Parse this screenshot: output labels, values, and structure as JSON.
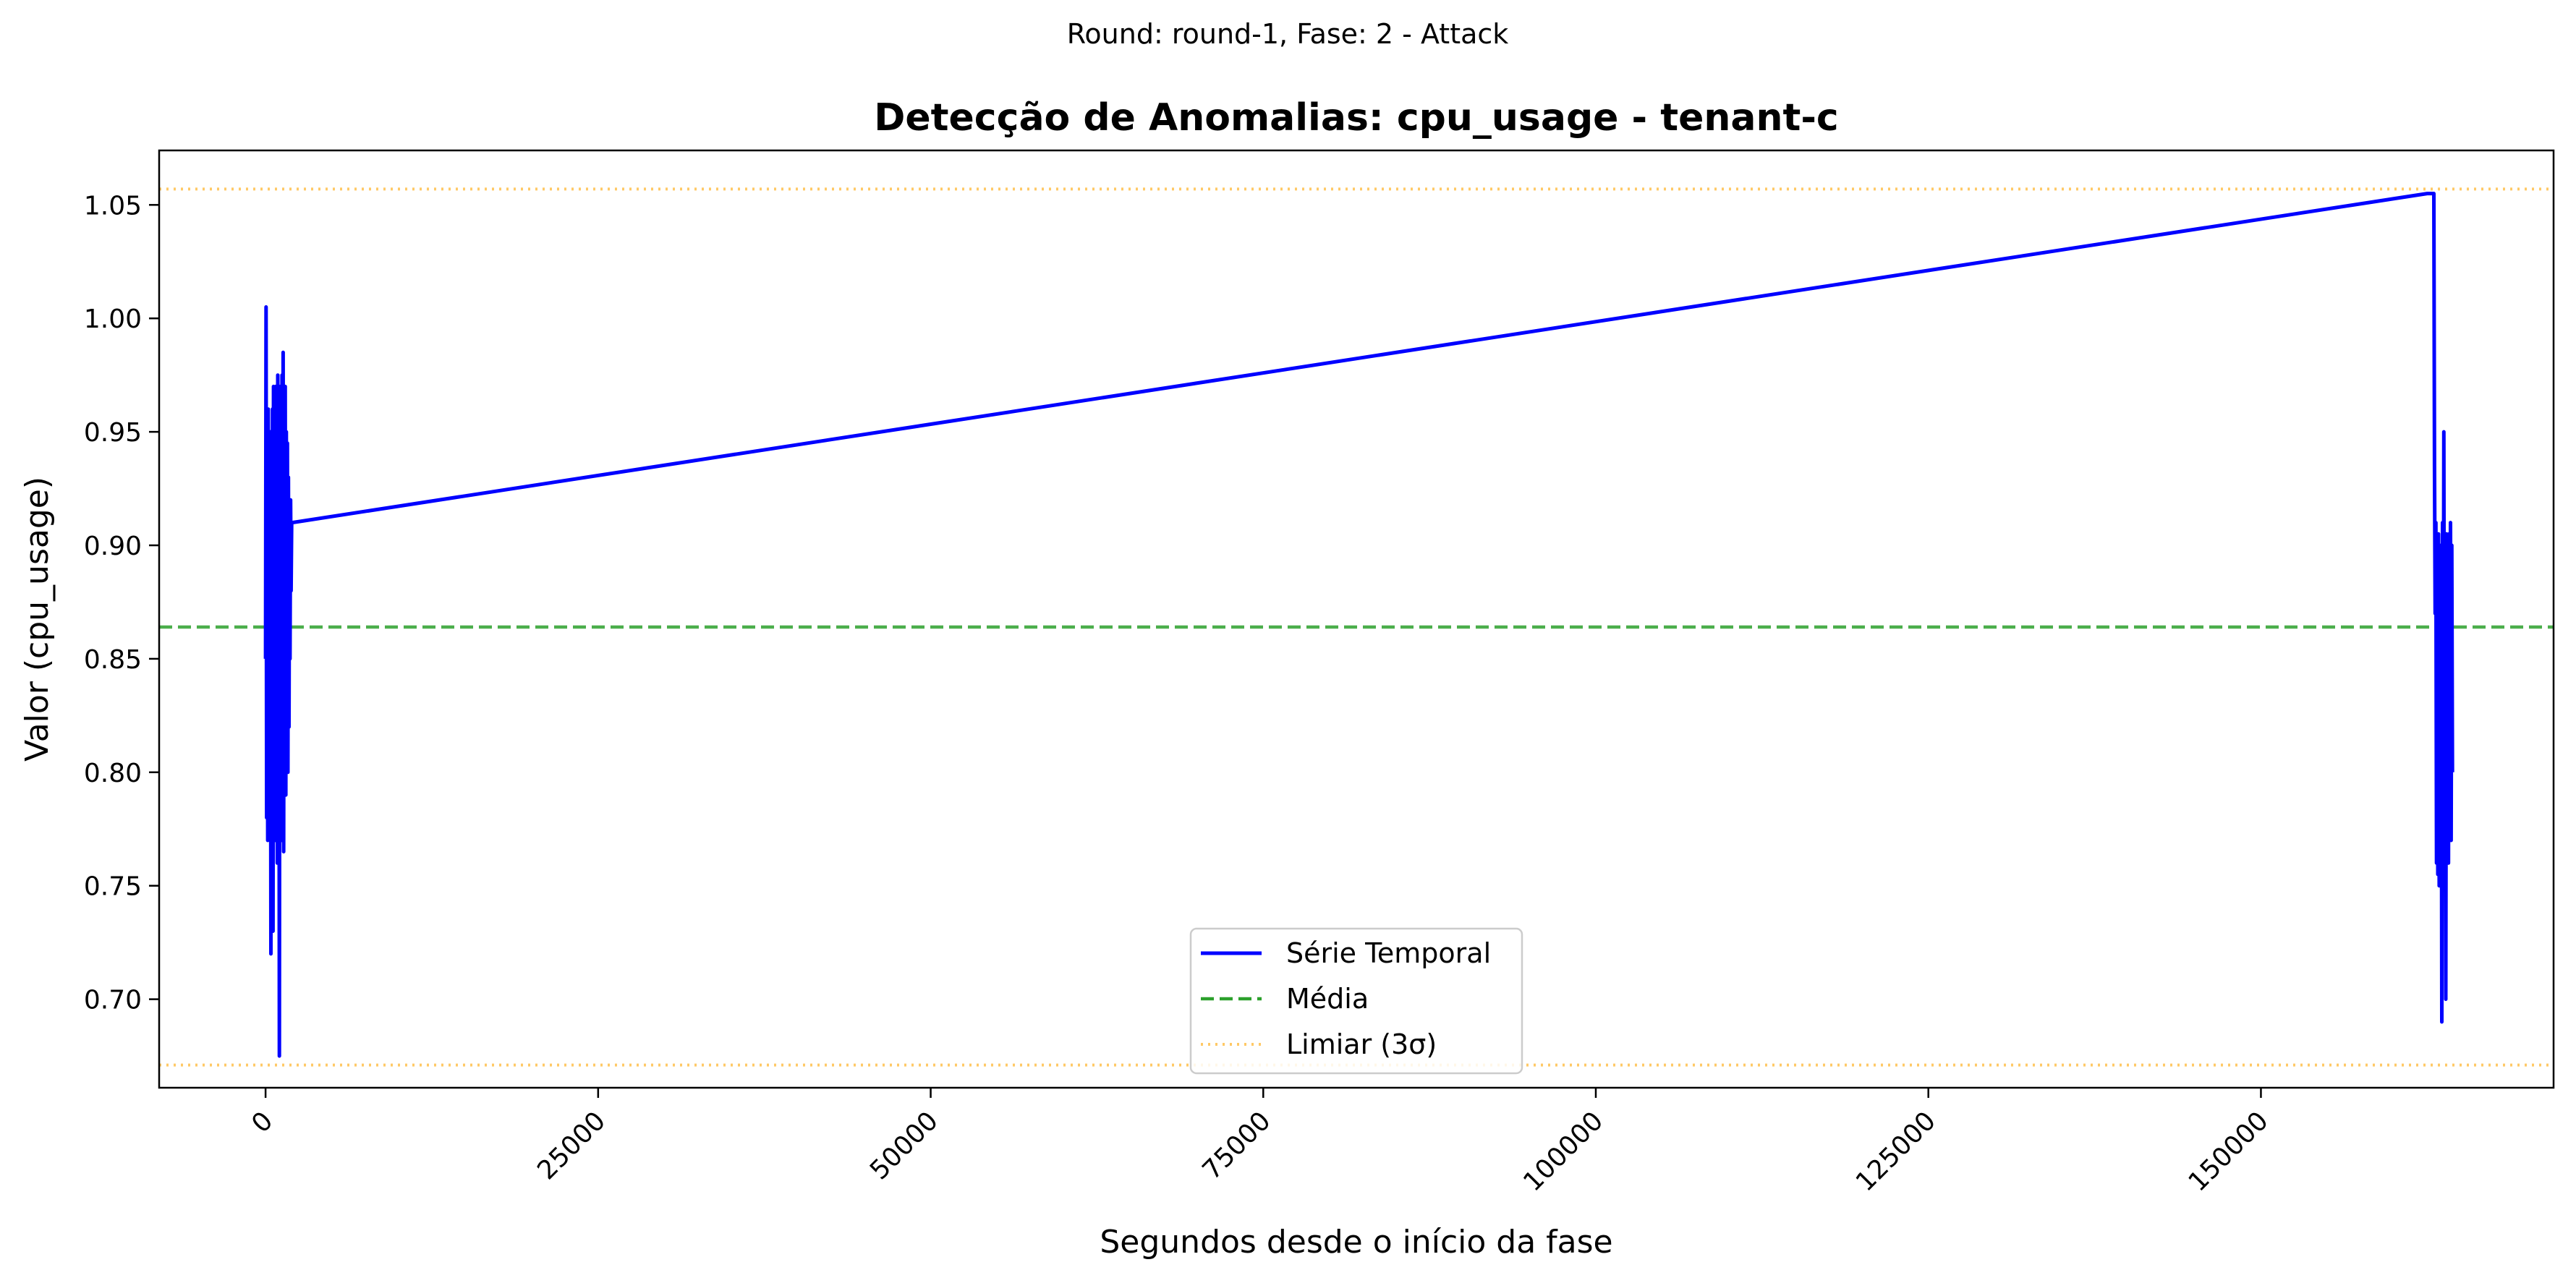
{
  "figure": {
    "suptitle": "Round: round-1, Fase: 2 - Attack"
  },
  "chart_data": {
    "type": "line",
    "title": "Detecção de Anomalias: cpu_usage - tenant-c",
    "xlabel": "Segundos desde o início da fase",
    "ylabel": "Valor (cpu_usage)",
    "xlim": [
      -8000,
      172000
    ],
    "ylim": [
      0.661,
      1.074
    ],
    "x_ticks": [
      0,
      25000,
      50000,
      75000,
      100000,
      125000,
      150000
    ],
    "x_tick_labels": [
      "0",
      "25000",
      "50000",
      "75000",
      "100000",
      "125000",
      "150000"
    ],
    "y_ticks": [
      0.7,
      0.75,
      0.8,
      0.85,
      0.9,
      0.95,
      1.0,
      1.05
    ],
    "y_tick_labels": [
      "0.70",
      "0.75",
      "0.80",
      "0.85",
      "0.90",
      "0.95",
      "1.00",
      "1.05"
    ],
    "grid": false,
    "legend_position": "lower center",
    "series": [
      {
        "name": "Série Temporal",
        "color": "#0000ff",
        "style": "solid",
        "x": [
          0,
          40,
          80,
          120,
          160,
          200,
          240,
          280,
          320,
          360,
          400,
          440,
          480,
          520,
          560,
          600,
          640,
          680,
          720,
          760,
          800,
          840,
          880,
          920,
          960,
          1000,
          1040,
          1080,
          1120,
          1160,
          1200,
          1240,
          1280,
          1320,
          1360,
          1400,
          1440,
          1480,
          1520,
          1560,
          1600,
          1640,
          1680,
          1720,
          1760,
          1800,
          1840,
          1880,
          1920,
          1960,
          2000,
          162500,
          163000,
          163050,
          163100,
          163150,
          163200,
          163250,
          163300,
          163350,
          163400,
          163450,
          163500,
          163550,
          163600,
          163650,
          163700,
          163750,
          163800,
          163850,
          163900,
          163950,
          164000,
          164050,
          164100,
          164150,
          164200,
          164250,
          164300,
          164350,
          164400
        ],
        "y": [
          0.85,
          1.005,
          0.78,
          0.93,
          0.77,
          0.96,
          0.8,
          0.94,
          0.77,
          0.95,
          0.72,
          0.93,
          0.79,
          0.96,
          0.73,
          0.97,
          0.8,
          0.95,
          0.77,
          0.97,
          0.79,
          0.96,
          0.76,
          0.975,
          0.8,
          0.955,
          0.675,
          0.97,
          0.78,
          0.96,
          0.77,
          0.975,
          0.79,
          0.985,
          0.765,
          0.96,
          0.8,
          0.97,
          0.79,
          0.95,
          0.82,
          0.945,
          0.8,
          0.93,
          0.82,
          0.91,
          0.85,
          0.92,
          0.88,
          0.91,
          0.91,
          1.055,
          1.055,
          0.935,
          0.87,
          0.91,
          0.76,
          0.9,
          0.755,
          0.905,
          0.75,
          0.895,
          0.76,
          0.9,
          0.69,
          0.91,
          0.78,
          0.95,
          0.77,
          0.89,
          0.7,
          0.905,
          0.78,
          0.9,
          0.76,
          0.905,
          0.8,
          0.91,
          0.77,
          0.9,
          0.8
        ]
      },
      {
        "name": "Média",
        "color": "#2ca02c",
        "style": "dashed",
        "y_const": 0.864
      },
      {
        "name": "Limiar (3σ)",
        "color": "#ffa500",
        "style": "dotted",
        "y_const_upper": 1.057,
        "y_const_lower": 0.671
      }
    ]
  }
}
